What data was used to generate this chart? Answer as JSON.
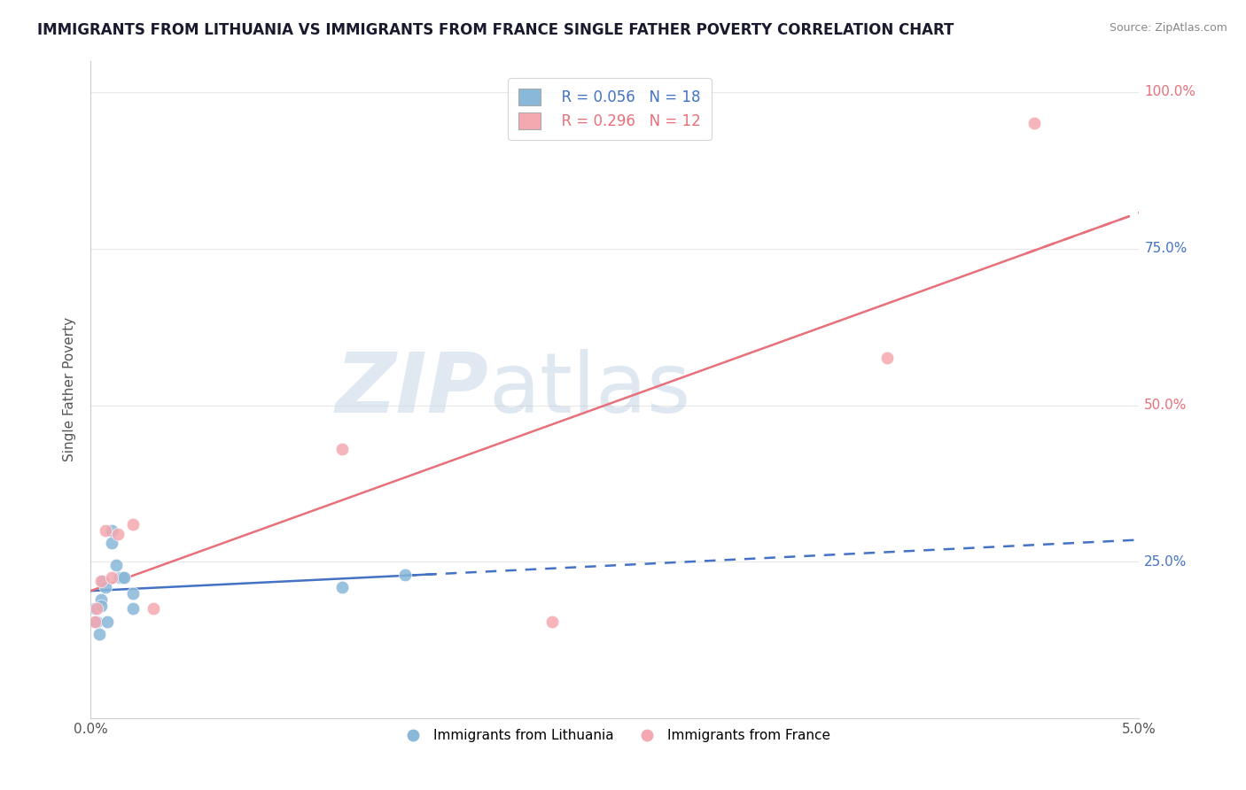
{
  "title": "IMMIGRANTS FROM LITHUANIA VS IMMIGRANTS FROM FRANCE SINGLE FATHER POVERTY CORRELATION CHART",
  "source": "Source: ZipAtlas.com",
  "ylabel": "Single Father Poverty",
  "legend_r1": "R = 0.056",
  "legend_n1": "N = 18",
  "legend_r2": "R = 0.296",
  "legend_n2": "N = 12",
  "color_lithuania": "#89b8d9",
  "color_france": "#f4a8b0",
  "color_lith_line": "#4472c4",
  "color_france_line": "#e8707a",
  "watermark_zip": "ZIP",
  "watermark_atlas": "atlas",
  "lithuania_x": [
    0.0002,
    0.0003,
    0.0004,
    0.0005,
    0.0005,
    0.0006,
    0.0007,
    0.0008,
    0.001,
    0.001,
    0.0012,
    0.0014,
    0.0015,
    0.0016,
    0.002,
    0.002,
    0.012,
    0.015
  ],
  "lithuania_y": [
    0.175,
    0.155,
    0.135,
    0.19,
    0.18,
    0.22,
    0.21,
    0.155,
    0.28,
    0.3,
    0.245,
    0.225,
    0.225,
    0.225,
    0.2,
    0.175,
    0.21,
    0.23
  ],
  "france_x": [
    0.0002,
    0.0003,
    0.0005,
    0.0007,
    0.001,
    0.0013,
    0.002,
    0.003,
    0.012,
    0.022,
    0.038,
    0.045
  ],
  "france_y": [
    0.155,
    0.175,
    0.22,
    0.3,
    0.225,
    0.295,
    0.31,
    0.175,
    0.43,
    0.155,
    0.575,
    0.95
  ],
  "xmin": 0.0,
  "xmax": 0.05,
  "ymin": 0.0,
  "ymax": 1.05,
  "title_fontsize": 12,
  "axis_color": "#cccccc",
  "grid_color": "#e8e8e8",
  "y_label_colors": [
    "#4472c4",
    "#e8707a",
    "#4472c4",
    "#e8707a"
  ],
  "y_label_values": [
    0.25,
    0.5,
    0.75,
    1.0
  ],
  "y_label_texts": [
    "25.0%",
    "50.0%",
    "75.0%",
    "100.0%"
  ]
}
